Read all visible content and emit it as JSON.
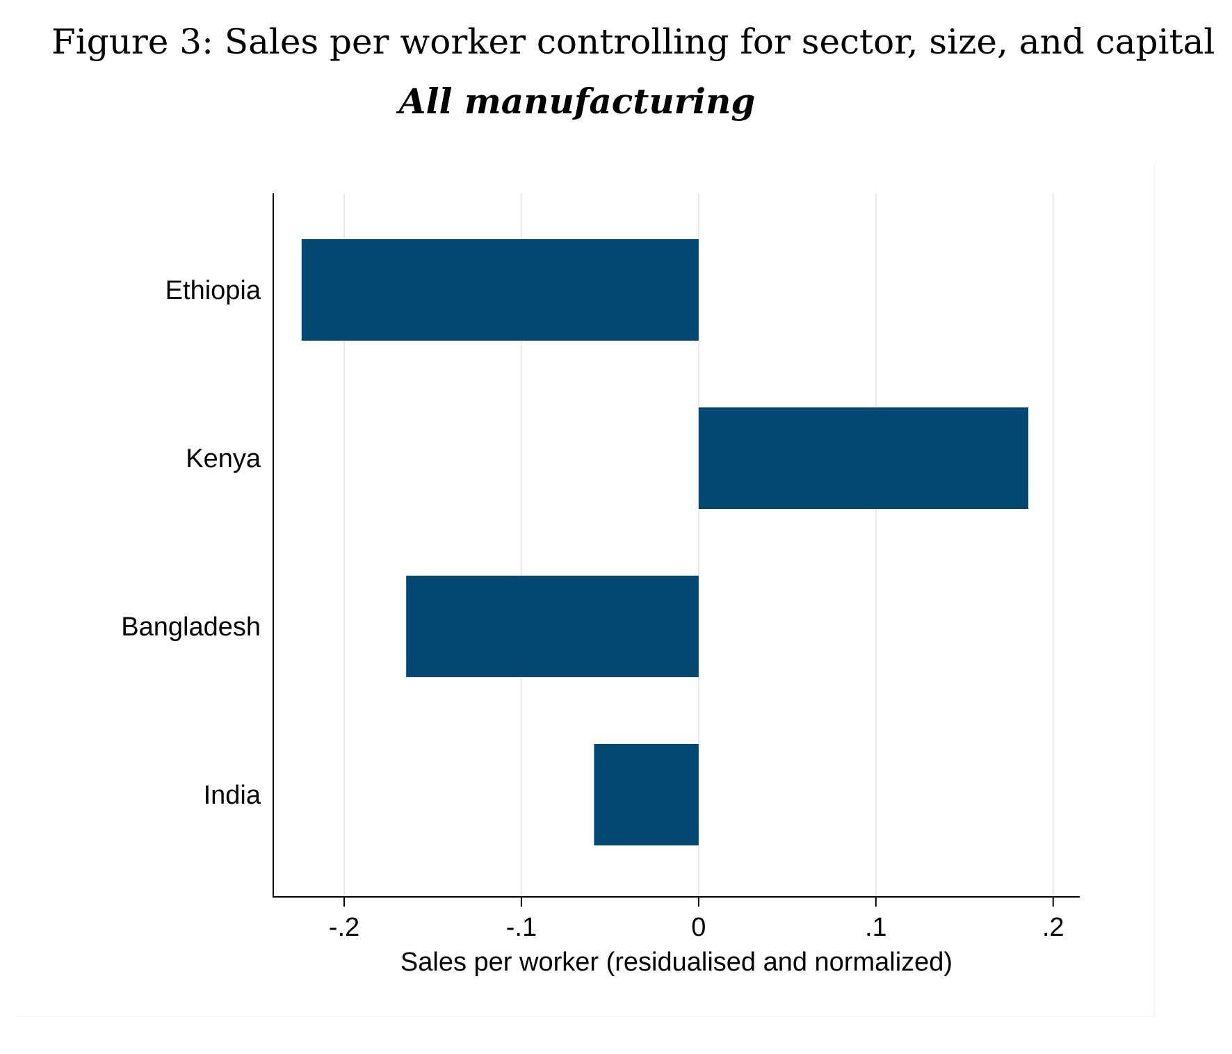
{
  "figure": {
    "title": "Figure 3: Sales per worker controlling for sector, size, and capital",
    "subtitle": "All manufacturing"
  },
  "chart_data": {
    "type": "bar",
    "orientation": "horizontal",
    "categories": [
      "Ethiopia",
      "Kenya",
      "Bangladesh",
      "India"
    ],
    "values": [
      -0.224,
      0.186,
      -0.165,
      -0.059
    ],
    "xlabel": "Sales per worker (residualised and normalized)",
    "ylabel": "",
    "xlim": [
      -0.24,
      0.215
    ],
    "xticks": [
      {
        "value": -0.2,
        "label": "-.2"
      },
      {
        "value": -0.1,
        "label": "-.1"
      },
      {
        "value": 0,
        "label": "0"
      },
      {
        "value": 0.1,
        "label": ".1"
      },
      {
        "value": 0.2,
        "label": ".2"
      }
    ],
    "grid": "vertical",
    "legend": "none",
    "bar_color": "#014872",
    "grid_color": "#e4ecee",
    "axis_color": "#000000"
  }
}
